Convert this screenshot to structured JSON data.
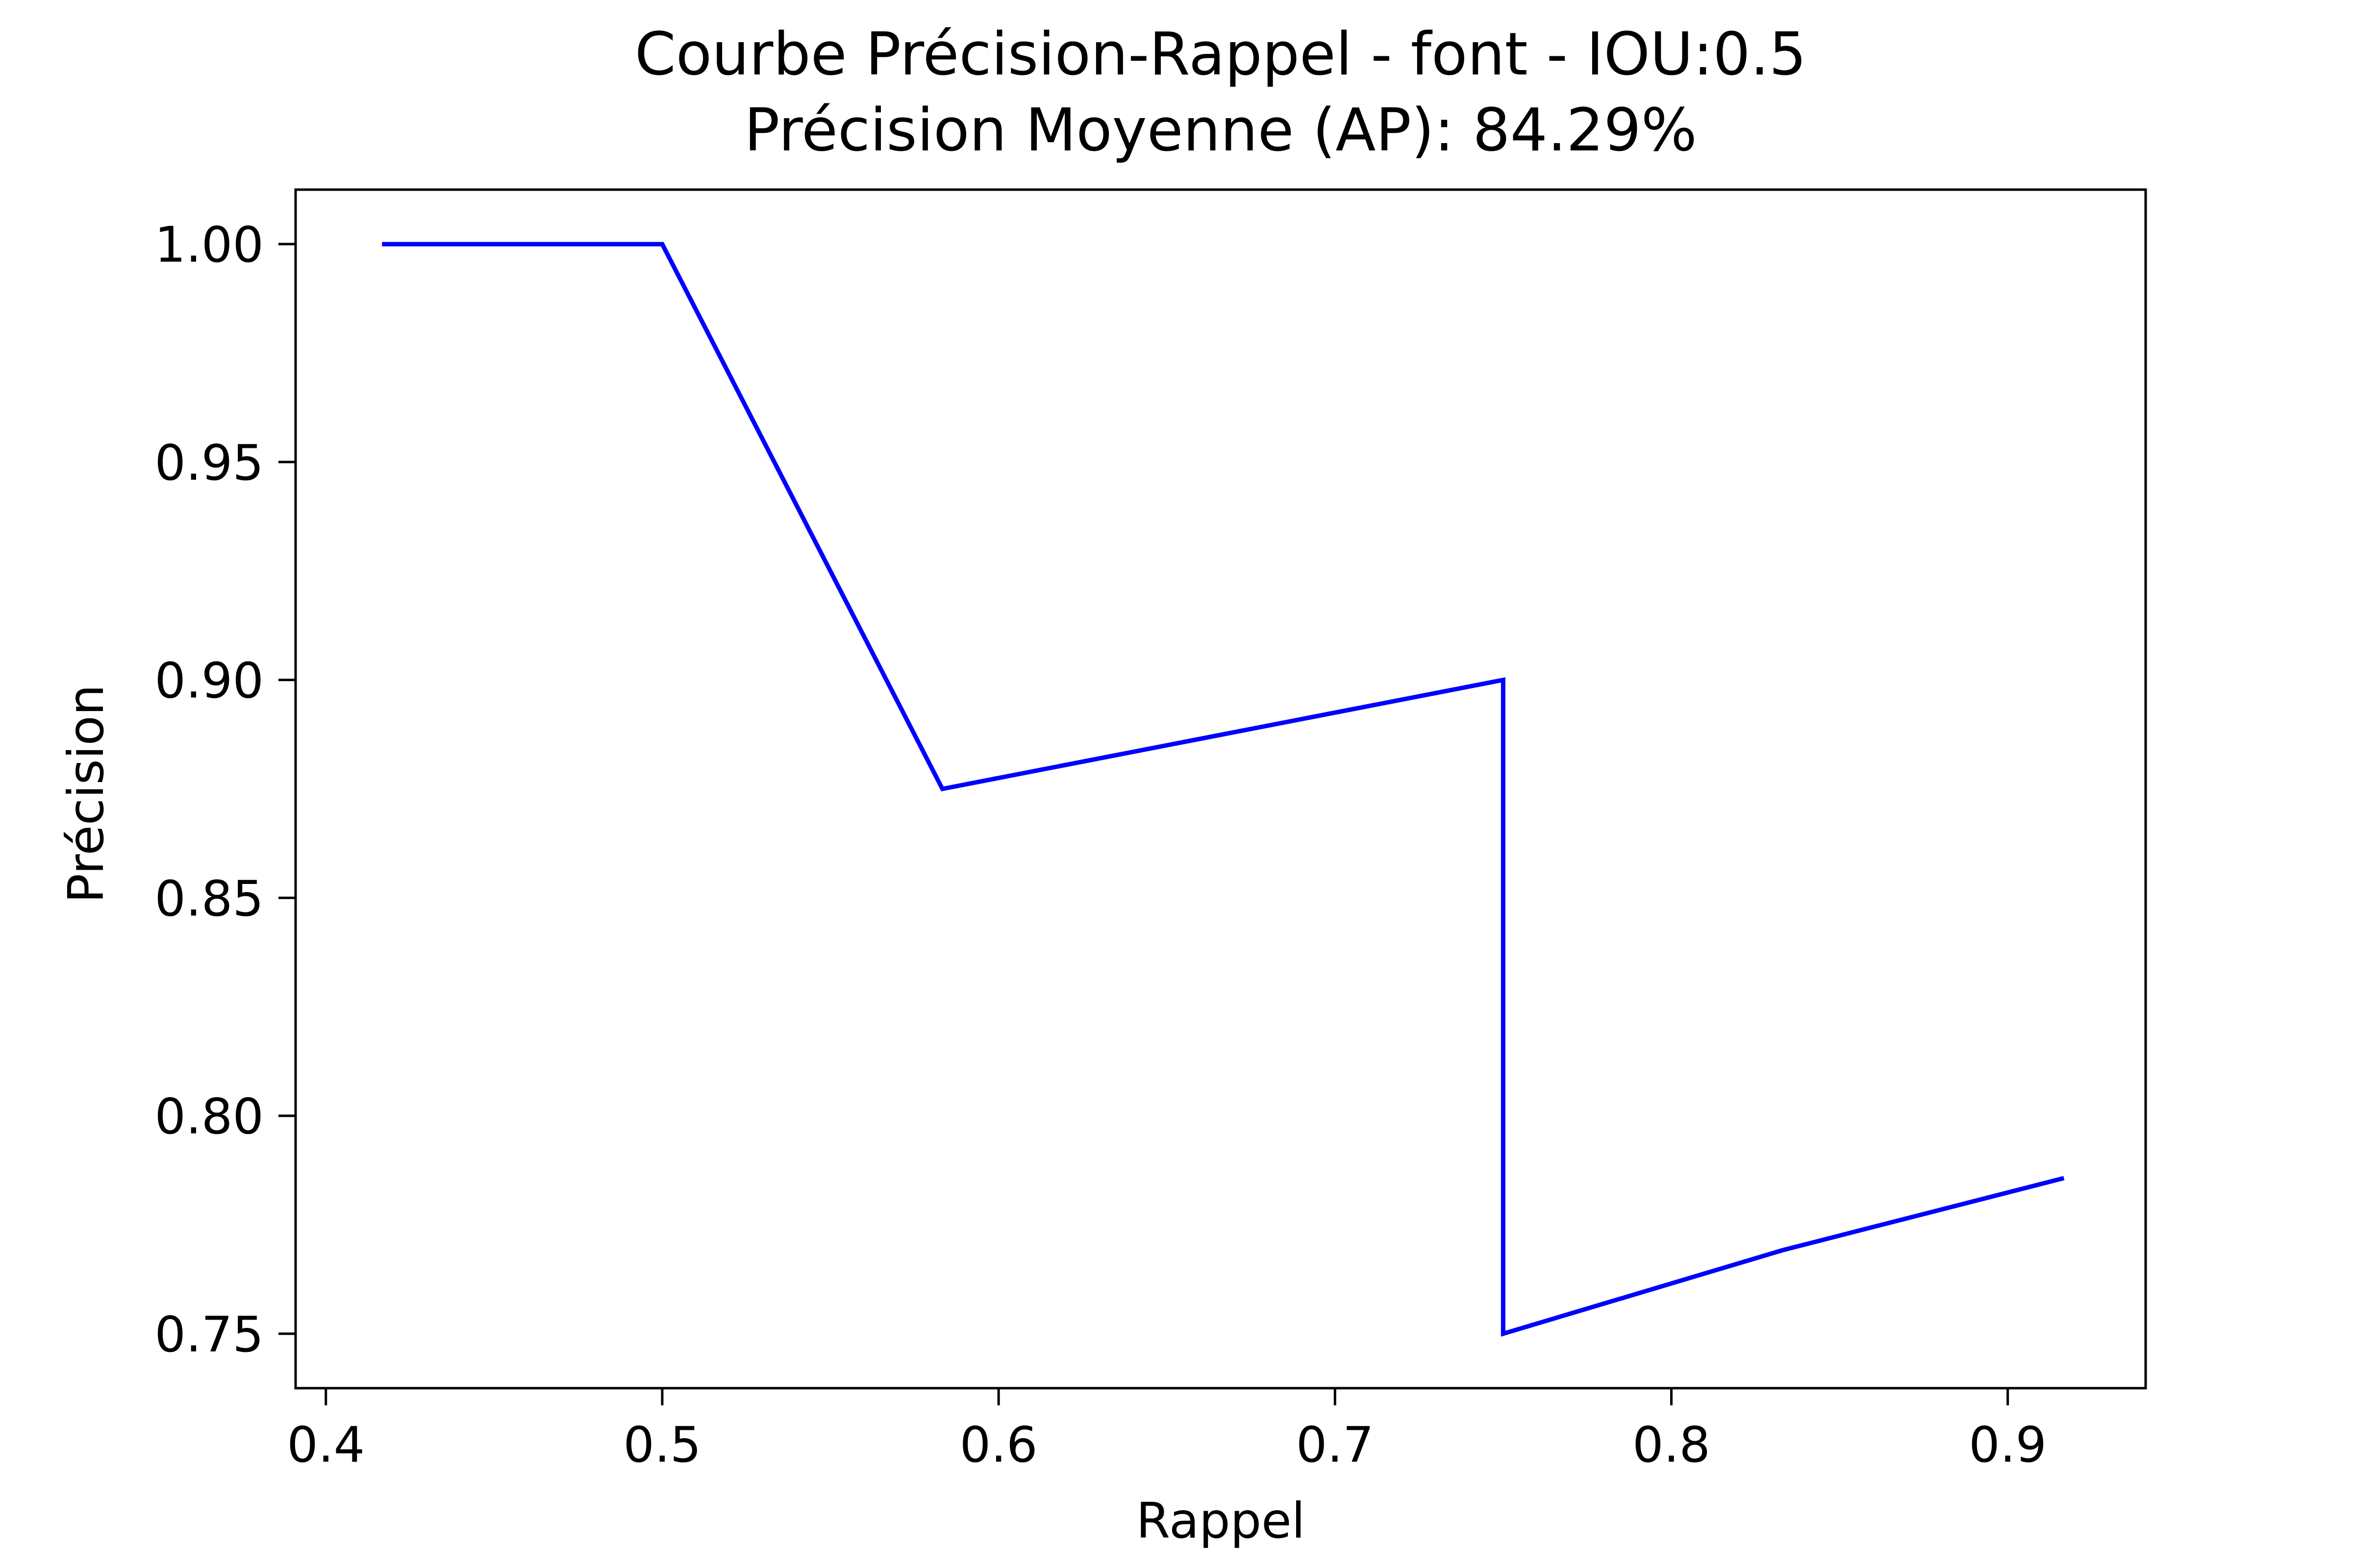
{
  "chart_data": {
    "type": "line",
    "title": "Courbe Précision-Rappel - font - IOU:0.5",
    "subtitle": "Précision Moyenne (AP): 84.29%",
    "xlabel": "Rappel",
    "ylabel": "Précision",
    "xlim": [
      0.391,
      0.941
    ],
    "ylim": [
      0.7375,
      1.0125
    ],
    "xticks": [
      0.4,
      0.5,
      0.6,
      0.7,
      0.8,
      0.9
    ],
    "xtick_labels": [
      "0.4",
      "0.5",
      "0.6",
      "0.7",
      "0.8",
      "0.9"
    ],
    "yticks": [
      0.75,
      0.8,
      0.85,
      0.9,
      0.95,
      1.0
    ],
    "ytick_labels": [
      "0.75",
      "0.80",
      "0.85",
      "0.90",
      "0.95",
      "1.00"
    ],
    "grid": false,
    "series": [
      {
        "color": "#0000ff",
        "x": [
          0.4167,
          0.5,
          0.5833,
          0.75,
          0.75,
          0.8333,
          0.9167
        ],
        "y": [
          1.0,
          1.0,
          0.875,
          0.9,
          0.75,
          0.7692,
          0.7857
        ]
      }
    ]
  }
}
